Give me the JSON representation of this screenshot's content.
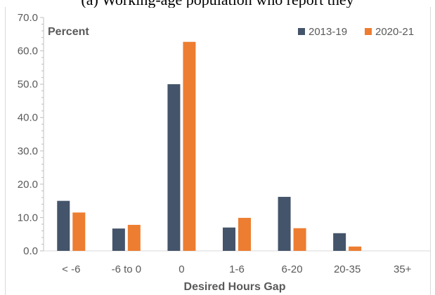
{
  "clipped_caption": "(a) Working-age population who report they",
  "chart_data": {
    "type": "bar",
    "categories": [
      "< -6",
      "-6 to 0",
      "0",
      "1-6",
      "6-20",
      "20-35",
      "35+"
    ],
    "series": [
      {
        "name": "2013-19",
        "values": [
          15.0,
          6.7,
          50.0,
          7.0,
          16.2,
          5.3,
          0.0
        ],
        "color": "#44546a"
      },
      {
        "name": "2020-21",
        "values": [
          11.5,
          7.8,
          62.7,
          9.9,
          6.8,
          1.3,
          0.0
        ],
        "color": "#ed7d31"
      }
    ],
    "title": "",
    "annotation": "Percent",
    "xlabel": "Desired Hours Gap",
    "ylabel": "",
    "ylim": [
      0,
      70
    ],
    "yticks": [
      "0.0",
      "10.0",
      "20.0",
      "30.0",
      "40.0",
      "50.0",
      "60.0",
      "70.0"
    ],
    "grid": false,
    "legend_position": "top-right"
  }
}
